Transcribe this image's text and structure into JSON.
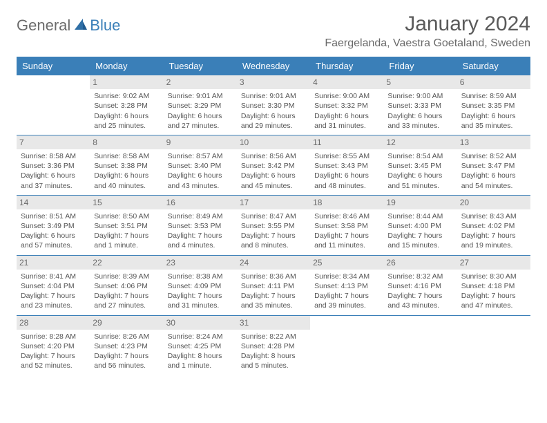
{
  "logo": {
    "text1": "General",
    "text2": "Blue"
  },
  "title": "January 2024",
  "location": "Faergelanda, Vaestra Goetaland, Sweden",
  "colors": {
    "header_bg": "#3a7fb8",
    "header_text": "#ffffff",
    "daynum_bg": "#e8e8e8",
    "border": "#3a7fb8",
    "body_text": "#555555",
    "title_text": "#5a5a5a"
  },
  "day_headers": [
    "Sunday",
    "Monday",
    "Tuesday",
    "Wednesday",
    "Thursday",
    "Friday",
    "Saturday"
  ],
  "weeks": [
    [
      {
        "blank": true
      },
      {
        "day": "1",
        "sunrise": "9:02 AM",
        "sunset": "3:28 PM",
        "daylight": "6 hours and 25 minutes."
      },
      {
        "day": "2",
        "sunrise": "9:01 AM",
        "sunset": "3:29 PM",
        "daylight": "6 hours and 27 minutes."
      },
      {
        "day": "3",
        "sunrise": "9:01 AM",
        "sunset": "3:30 PM",
        "daylight": "6 hours and 29 minutes."
      },
      {
        "day": "4",
        "sunrise": "9:00 AM",
        "sunset": "3:32 PM",
        "daylight": "6 hours and 31 minutes."
      },
      {
        "day": "5",
        "sunrise": "9:00 AM",
        "sunset": "3:33 PM",
        "daylight": "6 hours and 33 minutes."
      },
      {
        "day": "6",
        "sunrise": "8:59 AM",
        "sunset": "3:35 PM",
        "daylight": "6 hours and 35 minutes."
      }
    ],
    [
      {
        "day": "7",
        "sunrise": "8:58 AM",
        "sunset": "3:36 PM",
        "daylight": "6 hours and 37 minutes."
      },
      {
        "day": "8",
        "sunrise": "8:58 AM",
        "sunset": "3:38 PM",
        "daylight": "6 hours and 40 minutes."
      },
      {
        "day": "9",
        "sunrise": "8:57 AM",
        "sunset": "3:40 PM",
        "daylight": "6 hours and 43 minutes."
      },
      {
        "day": "10",
        "sunrise": "8:56 AM",
        "sunset": "3:42 PM",
        "daylight": "6 hours and 45 minutes."
      },
      {
        "day": "11",
        "sunrise": "8:55 AM",
        "sunset": "3:43 PM",
        "daylight": "6 hours and 48 minutes."
      },
      {
        "day": "12",
        "sunrise": "8:54 AM",
        "sunset": "3:45 PM",
        "daylight": "6 hours and 51 minutes."
      },
      {
        "day": "13",
        "sunrise": "8:52 AM",
        "sunset": "3:47 PM",
        "daylight": "6 hours and 54 minutes."
      }
    ],
    [
      {
        "day": "14",
        "sunrise": "8:51 AM",
        "sunset": "3:49 PM",
        "daylight": "6 hours and 57 minutes."
      },
      {
        "day": "15",
        "sunrise": "8:50 AM",
        "sunset": "3:51 PM",
        "daylight": "7 hours and 1 minute."
      },
      {
        "day": "16",
        "sunrise": "8:49 AM",
        "sunset": "3:53 PM",
        "daylight": "7 hours and 4 minutes."
      },
      {
        "day": "17",
        "sunrise": "8:47 AM",
        "sunset": "3:55 PM",
        "daylight": "7 hours and 8 minutes."
      },
      {
        "day": "18",
        "sunrise": "8:46 AM",
        "sunset": "3:58 PM",
        "daylight": "7 hours and 11 minutes."
      },
      {
        "day": "19",
        "sunrise": "8:44 AM",
        "sunset": "4:00 PM",
        "daylight": "7 hours and 15 minutes."
      },
      {
        "day": "20",
        "sunrise": "8:43 AM",
        "sunset": "4:02 PM",
        "daylight": "7 hours and 19 minutes."
      }
    ],
    [
      {
        "day": "21",
        "sunrise": "8:41 AM",
        "sunset": "4:04 PM",
        "daylight": "7 hours and 23 minutes."
      },
      {
        "day": "22",
        "sunrise": "8:39 AM",
        "sunset": "4:06 PM",
        "daylight": "7 hours and 27 minutes."
      },
      {
        "day": "23",
        "sunrise": "8:38 AM",
        "sunset": "4:09 PM",
        "daylight": "7 hours and 31 minutes."
      },
      {
        "day": "24",
        "sunrise": "8:36 AM",
        "sunset": "4:11 PM",
        "daylight": "7 hours and 35 minutes."
      },
      {
        "day": "25",
        "sunrise": "8:34 AM",
        "sunset": "4:13 PM",
        "daylight": "7 hours and 39 minutes."
      },
      {
        "day": "26",
        "sunrise": "8:32 AM",
        "sunset": "4:16 PM",
        "daylight": "7 hours and 43 minutes."
      },
      {
        "day": "27",
        "sunrise": "8:30 AM",
        "sunset": "4:18 PM",
        "daylight": "7 hours and 47 minutes."
      }
    ],
    [
      {
        "day": "28",
        "sunrise": "8:28 AM",
        "sunset": "4:20 PM",
        "daylight": "7 hours and 52 minutes."
      },
      {
        "day": "29",
        "sunrise": "8:26 AM",
        "sunset": "4:23 PM",
        "daylight": "7 hours and 56 minutes."
      },
      {
        "day": "30",
        "sunrise": "8:24 AM",
        "sunset": "4:25 PM",
        "daylight": "8 hours and 1 minute."
      },
      {
        "day": "31",
        "sunrise": "8:22 AM",
        "sunset": "4:28 PM",
        "daylight": "8 hours and 5 minutes."
      },
      {
        "blank": true
      },
      {
        "blank": true
      },
      {
        "blank": true
      }
    ]
  ],
  "labels": {
    "sunrise": "Sunrise:",
    "sunset": "Sunset:",
    "daylight": "Daylight:"
  }
}
